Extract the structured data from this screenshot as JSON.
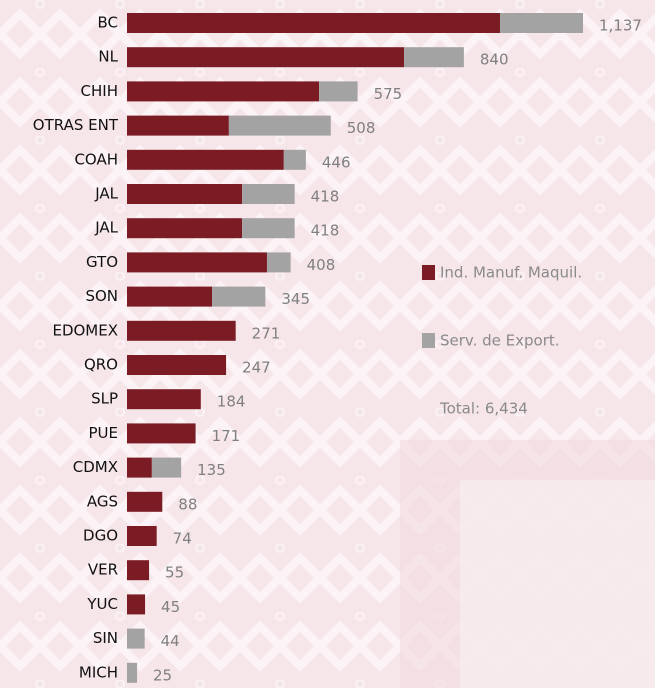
{
  "chart_data": {
    "type": "stacked-barh",
    "categories": [
      "BC",
      "NL",
      "CHIH",
      "OTRAS ENT",
      "COAH",
      "JAL",
      "JAL",
      "GTO",
      "SON",
      "EDOMEX",
      "QRO",
      "SLP",
      "PUE",
      "CDMX",
      "AGS",
      "DGO",
      "VER",
      "YUC",
      "SIN",
      "MICH"
    ],
    "series": [
      {
        "name": "Ind.  Manuf. Maquil.",
        "color": "#7b1c25",
        "values": [
          930,
          691,
          479,
          254,
          391,
          287,
          287,
          349,
          212,
          271,
          247,
          184,
          171,
          62,
          88,
          74,
          55,
          45,
          0,
          0
        ]
      },
      {
        "name": "Serv. de Export.",
        "color": "#a3a3a3",
        "values": [
          207,
          149,
          96,
          254,
          55,
          131,
          131,
          59,
          133,
          0,
          0,
          0,
          0,
          73,
          0,
          0,
          0,
          0,
          44,
          25
        ]
      }
    ],
    "total_labels": [
      "1,137",
      "840",
      "575",
      "508",
      "446",
      "418",
      "418",
      "408",
      "345",
      "271",
      "247",
      "184",
      "171",
      "135",
      "88",
      "74",
      "55",
      "45",
      "44",
      "25"
    ],
    "annotation": "Total: 6,434"
  }
}
